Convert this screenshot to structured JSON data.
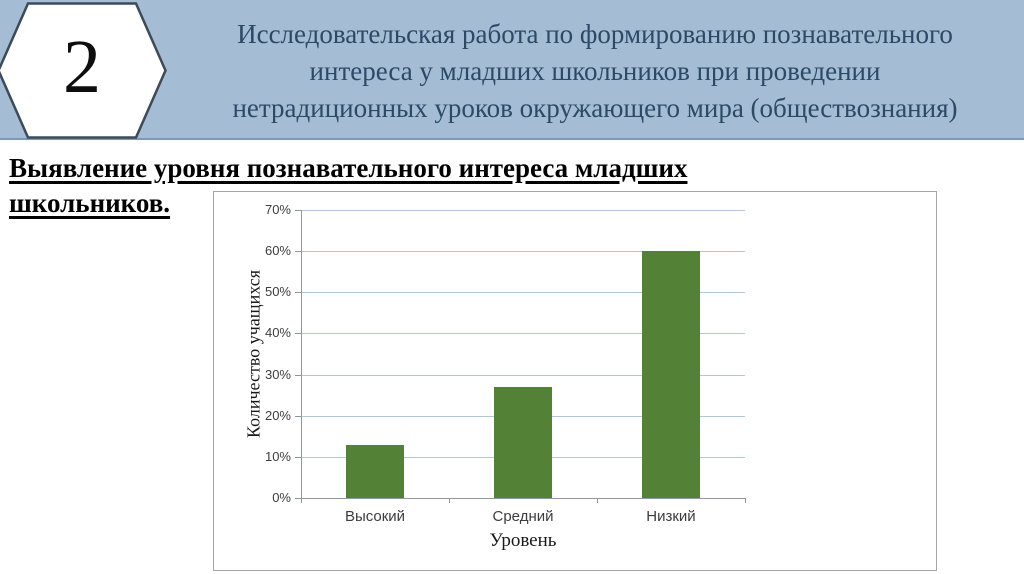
{
  "slide": {
    "badge_number": "2",
    "title_lines": [
      "Исследовательская работа по формированию познавательного",
      "интереса у младших школьников при проведении",
      "нетрадиционных уроков окружающего мира (обществознания)"
    ],
    "heading_lines": [
      "Выявление уровня познавательного интереса младших",
      "школьников."
    ]
  },
  "colors": {
    "header_bg": "#a4bcd4",
    "header_border": "#7f99b5",
    "title_text": "#2c4a66",
    "hexagon_fill": "#ffffff",
    "hexagon_border": "#3d4b59",
    "bar_fill": "#538135",
    "gridline": "#b3c6da",
    "axis": "#8f989f",
    "chart_border": "#a6a6a6"
  },
  "chart_data": {
    "type": "bar",
    "categories": [
      "Высокий",
      "Средний",
      "Низкий"
    ],
    "values": [
      13,
      27,
      60
    ],
    "title": "",
    "xlabel": "Уровень",
    "ylabel": "Количество учащихся",
    "ylim": [
      0,
      70
    ],
    "ytick_values": [
      0,
      10,
      20,
      30,
      40,
      50,
      60,
      70
    ],
    "ytick_labels": [
      "0%",
      "10%",
      "20%",
      "30%",
      "40%",
      "50%",
      "60%",
      "70%"
    ],
    "grid": true,
    "legend": "none"
  }
}
